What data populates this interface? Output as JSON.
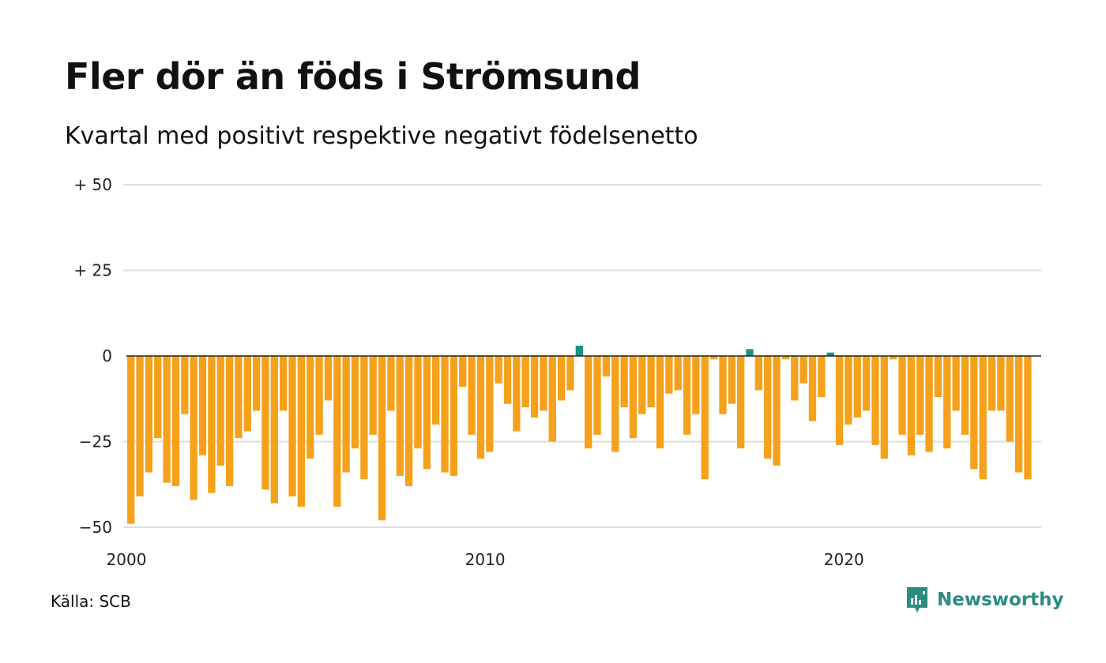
{
  "title": "Fler dör än föds i Strömsund",
  "subtitle": "Kvartal med positivt respektive negativt födelsenetto",
  "source": "Källa: SCB",
  "brand": "Newsworthy",
  "colors": {
    "positive": "#1a9282",
    "negative": "#f6a11c",
    "grid": "#dddddd",
    "zero_line": "#222222",
    "brand": "#2b8c80"
  },
  "chart_data": {
    "type": "bar",
    "title": "Fler dör än föds i Strömsund",
    "subtitle": "Kvartal med positivt respektive negativt födelsenetto",
    "xlabel": "",
    "ylabel": "",
    "ylim": [
      -50,
      50
    ],
    "yticks": [
      50,
      25,
      0,
      -25,
      -50
    ],
    "ytick_labels": [
      "+ 50",
      "+ 25",
      "0",
      "−25",
      "−50"
    ],
    "xlim": [
      2000,
      2025.5
    ],
    "xticks": [
      2000,
      2010,
      2020
    ],
    "xtick_labels": [
      "2000",
      "2010",
      "2020"
    ],
    "grid": true,
    "legend": "none",
    "start": "2000 Q1",
    "frequency": "quarterly",
    "values": [
      -49,
      -41,
      -34,
      -24,
      -37,
      -38,
      -17,
      -42,
      -29,
      -40,
      -32,
      -38,
      -24,
      -22,
      -16,
      -39,
      -43,
      -16,
      -41,
      -44,
      -30,
      -23,
      -13,
      -44,
      -34,
      -27,
      -36,
      -23,
      -48,
      -16,
      -35,
      -38,
      -27,
      -33,
      -20,
      -34,
      -35,
      -9,
      -23,
      -30,
      -28,
      -8,
      -14,
      -22,
      -15,
      -18,
      -16,
      -25,
      -13,
      -10,
      3,
      -27,
      -23,
      -6,
      -28,
      -15,
      -24,
      -17,
      -15,
      -27,
      -11,
      -10,
      -23,
      -17,
      -36,
      -1,
      -17,
      -14,
      -27,
      2,
      -10,
      -30,
      -32,
      -1,
      -13,
      -8,
      -19,
      -12,
      1,
      -26,
      -20,
      -18,
      -16,
      -26,
      -30,
      -1,
      -23,
      -29,
      -23,
      -28,
      -12,
      -27,
      -16,
      -23,
      -33,
      -36,
      -16,
      -16,
      -25,
      -34,
      -36
    ]
  }
}
